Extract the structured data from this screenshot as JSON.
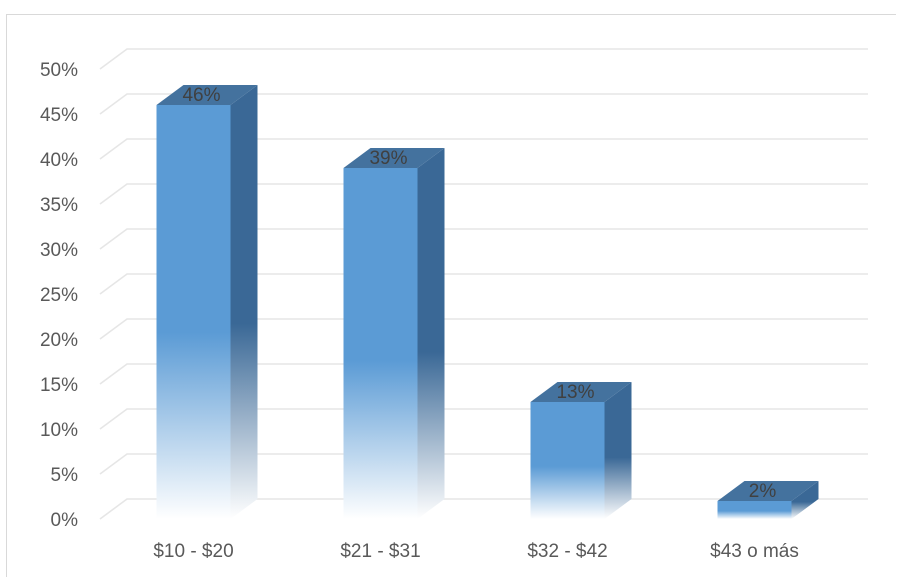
{
  "chart_data": {
    "type": "bar",
    "style": "3d-column",
    "categories": [
      "$10 - $20",
      "$21 - $31",
      "$32 - $42",
      "$43  o más"
    ],
    "values": [
      46,
      39,
      13,
      2
    ],
    "data_labels": [
      "46%",
      "39%",
      "13%",
      "2%"
    ],
    "y_ticks": [
      "0%",
      "5%",
      "10%",
      "15%",
      "20%",
      "25%",
      "30%",
      "35%",
      "40%",
      "45%",
      "50%"
    ],
    "ylim": [
      0,
      50
    ],
    "grid": true,
    "legend": "none",
    "colors": {
      "front_top": "#5b9bd5",
      "front_bottom": "#ffffff",
      "side": "#3a6896",
      "top": "#44729e",
      "grid": "#e6e6e6",
      "text": "#595959"
    }
  }
}
